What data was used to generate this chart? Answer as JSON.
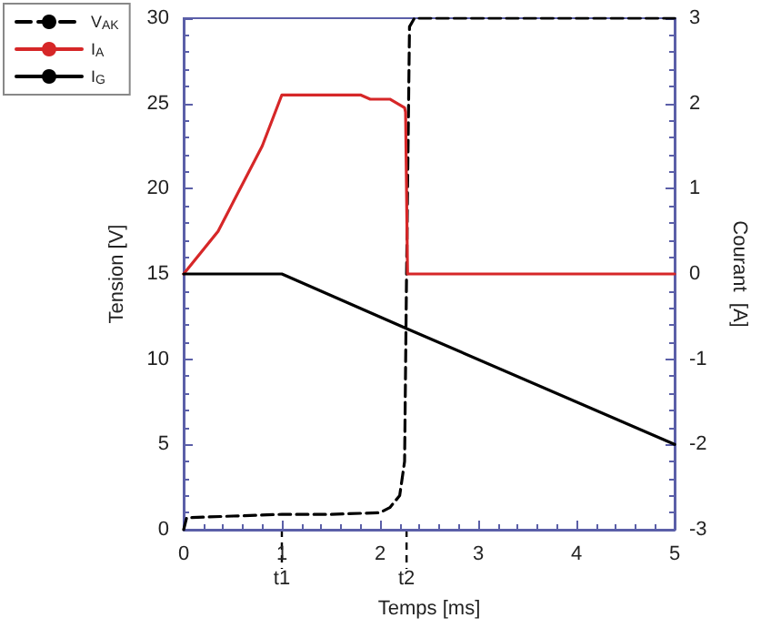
{
  "chart_data": {
    "type": "line",
    "xlabel": "Temps [ms]",
    "ylabel": "Tension [V]",
    "y2label": "Courant  [A]",
    "xlim": [
      0,
      5
    ],
    "xticks": [
      0,
      1,
      2,
      3,
      4,
      5
    ],
    "ylim": [
      0,
      30
    ],
    "yticks": [
      0,
      5,
      10,
      15,
      20,
      25,
      30
    ],
    "y2lim": [
      -3,
      3
    ],
    "y2ticks": [
      -3,
      -2,
      -1,
      0,
      1,
      2,
      3
    ],
    "grid": false,
    "legend": "top left",
    "marker": "none",
    "series": [
      {
        "name": "V$_{AK}$",
        "color": "#000000",
        "line_style": "dashed",
        "x": [
          0,
          0.03,
          0.5,
          1,
          1.5,
          2,
          2.1,
          2.2,
          2.25,
          2.27,
          2.3,
          2.35,
          5
        ],
        "values": [
          0,
          0.7,
          0.8,
          0.9,
          0.9,
          1.0,
          1.3,
          2.0,
          4,
          15,
          29.5,
          30,
          30
        ]
      },
      {
        "name": "I$_{A}$",
        "color": "#d62728",
        "axis": "y2",
        "x": [
          0,
          0.35,
          0.8,
          1,
          1.8,
          1.9,
          2.1,
          2.25,
          2.26,
          2.28,
          5
        ],
        "values": [
          0,
          0.5,
          1.5,
          2.1,
          2.1,
          2.05,
          2.05,
          1.95,
          1.9,
          0,
          0
        ]
      },
      {
        "name": "I$_{G}$",
        "color": "#000000",
        "axis": "y2",
        "x": [
          0,
          1,
          2.27,
          5
        ],
        "values": [
          0,
          0,
          -0.64,
          -2
        ]
      }
    ],
    "ref_lines": [
      {
        "axis": "x",
        "value": 1,
        "label": "t1",
        "line_style": "dashed"
      },
      {
        "axis": "x",
        "value": 2.27,
        "label": "t2",
        "line_style": "dashed"
      }
    ]
  }
}
